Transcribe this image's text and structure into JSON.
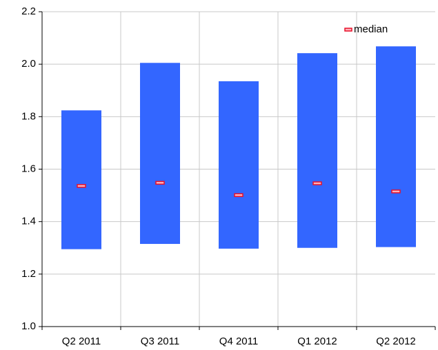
{
  "chart_data": {
    "type": "range-bar",
    "categories": [
      "Q2 2011",
      "Q3 2011",
      "Q4 2011",
      "Q1 2012",
      "Q2 2012"
    ],
    "ranges": {
      "color": "#3366ff",
      "low": [
        1.295,
        1.315,
        1.297,
        1.3,
        1.303
      ],
      "high": [
        1.824,
        2.005,
        1.935,
        2.042,
        2.068
      ]
    },
    "median": {
      "name": "median",
      "color": "#e8102a",
      "values": [
        1.536,
        1.548,
        1.501,
        1.546,
        1.515
      ]
    },
    "ylim": [
      1.0,
      2.2
    ],
    "yticks": [
      {
        "value": 1.0,
        "label": "1.0"
      },
      {
        "value": 1.2,
        "label": "1.2"
      },
      {
        "value": 1.4,
        "label": "1.4"
      },
      {
        "value": 1.6,
        "label": "1.6"
      },
      {
        "value": 1.8,
        "label": "1.8"
      },
      {
        "value": 2.0,
        "label": "2.0"
      },
      {
        "value": 2.2,
        "label": "2.2"
      }
    ],
    "grid": true,
    "legend": "top-right"
  }
}
